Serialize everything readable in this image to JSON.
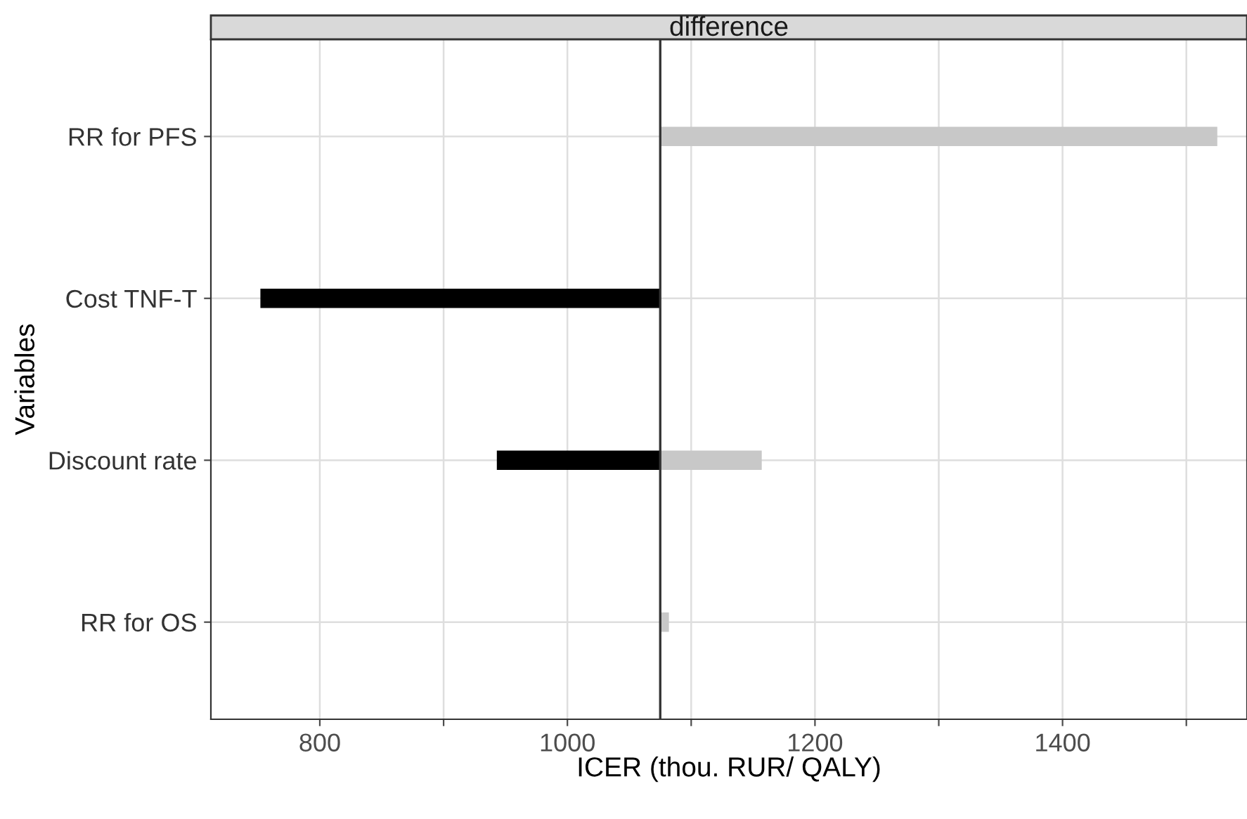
{
  "chart_data": {
    "type": "bar",
    "orientation": "horizontal",
    "title": "difference",
    "xlabel": "ICER (thou. RUR/ QALY)",
    "ylabel": "Variables",
    "categories": [
      "RR for PFS",
      "Cost TNF-T",
      "Discount rate",
      "RR for OS"
    ],
    "series": [
      {
        "color": "#000000",
        "base": [
          null,
          1075,
          1075,
          null
        ],
        "values": [
          null,
          -323,
          -132,
          null
        ]
      },
      {
        "color": "#c8c8c8",
        "base": [
          1075,
          null,
          1075,
          1075
        ],
        "values": [
          450,
          null,
          82,
          7
        ]
      }
    ],
    "xlim": [
      712,
      1549
    ],
    "xticks": [
      800,
      {
        "value": 900,
        "label": null
      },
      1000,
      {
        "value": 1100,
        "label": null
      },
      1200,
      {
        "value": 1300,
        "label": null
      },
      1400,
      {
        "value": 1500,
        "label": null
      }
    ],
    "ref_lines": [
      {
        "axis": "x",
        "value": 1075,
        "color": "#333333"
      }
    ],
    "grid": true
  }
}
